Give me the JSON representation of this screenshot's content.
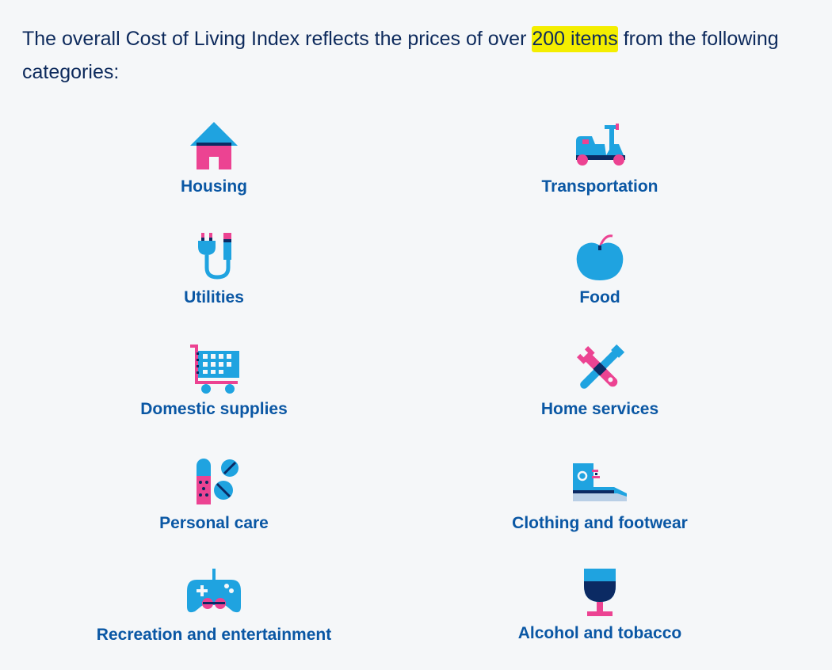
{
  "intro": {
    "before": "The overall Cost of Living Index reflects the prices of over",
    "highlight": "200 items",
    "after": "from the following categories:"
  },
  "categories": [
    {
      "label": "Housing",
      "icon": "house-icon"
    },
    {
      "label": "Transportation",
      "icon": "scooter-icon"
    },
    {
      "label": "Utilities",
      "icon": "plug-icon"
    },
    {
      "label": "Food",
      "icon": "apple-icon"
    },
    {
      "label": "Domestic supplies",
      "icon": "shopping-cart-icon"
    },
    {
      "label": "Home services",
      "icon": "tools-icon"
    },
    {
      "label": "Personal care",
      "icon": "bandage-pills-icon"
    },
    {
      "label": "Clothing and footwear",
      "icon": "sneaker-icon"
    },
    {
      "label": "Recreation and entertainment",
      "icon": "gamepad-icon"
    },
    {
      "label": "Alcohol and tobacco",
      "icon": "wine-glass-icon"
    }
  ],
  "colors": {
    "text": "#0d2a5c",
    "label": "#0a57a4",
    "cyan": "#1fa3e0",
    "pink": "#ec4392",
    "navy": "#0b2a63",
    "highlight": "#f4ee00"
  }
}
